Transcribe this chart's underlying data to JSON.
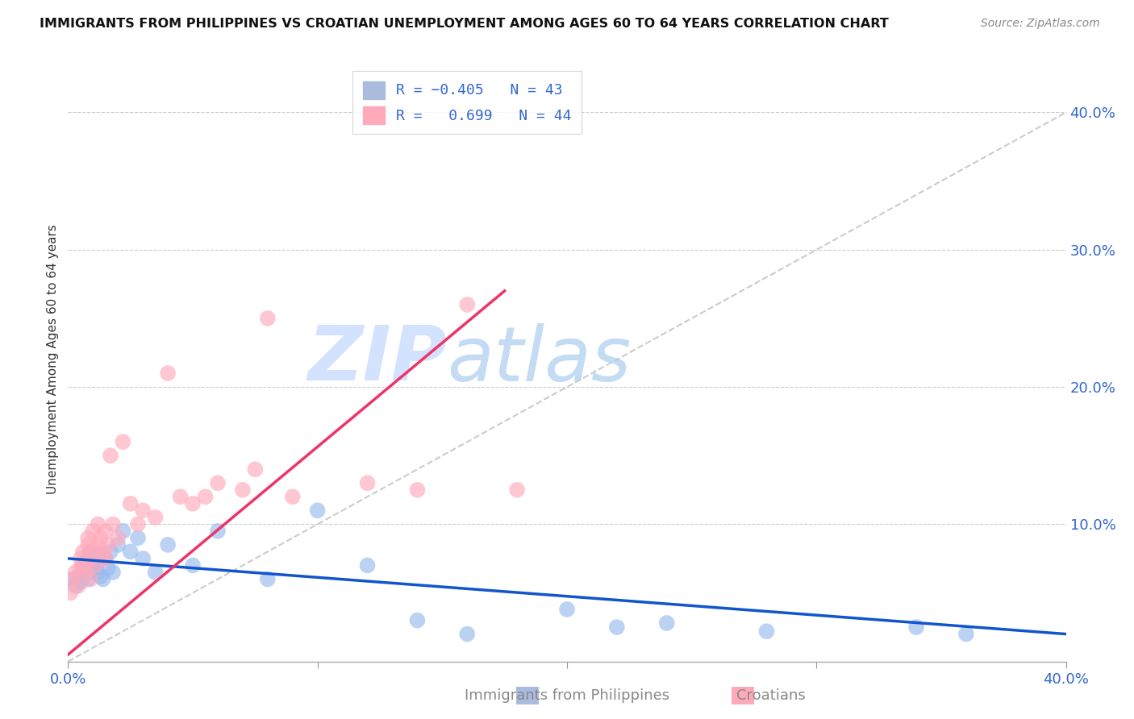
{
  "title": "IMMIGRANTS FROM PHILIPPINES VS CROATIAN UNEMPLOYMENT AMONG AGES 60 TO 64 YEARS CORRELATION CHART",
  "source": "Source: ZipAtlas.com",
  "ylabel": "Unemployment Among Ages 60 to 64 years",
  "blue_color": "#99BBEE",
  "pink_color": "#FFAABB",
  "blue_line_color": "#1155CC",
  "pink_line_color": "#EE3366",
  "diagonal_color": "#CCCCCC",
  "watermark_zip": "ZIP",
  "watermark_atlas": "atlas",
  "xlim": [
    0.0,
    0.4
  ],
  "ylim": [
    0.0,
    0.44
  ],
  "blue_scatter_x": [
    0.002,
    0.003,
    0.004,
    0.005,
    0.006,
    0.006,
    0.007,
    0.007,
    0.008,
    0.008,
    0.009,
    0.009,
    0.01,
    0.01,
    0.011,
    0.012,
    0.012,
    0.013,
    0.014,
    0.015,
    0.016,
    0.017,
    0.018,
    0.02,
    0.022,
    0.025,
    0.028,
    0.03,
    0.035,
    0.04,
    0.05,
    0.06,
    0.08,
    0.1,
    0.12,
    0.14,
    0.16,
    0.2,
    0.22,
    0.24,
    0.28,
    0.34,
    0.36
  ],
  "blue_scatter_y": [
    0.06,
    0.055,
    0.062,
    0.058,
    0.07,
    0.065,
    0.068,
    0.072,
    0.06,
    0.075,
    0.065,
    0.08,
    0.068,
    0.073,
    0.07,
    0.065,
    0.078,
    0.062,
    0.06,
    0.075,
    0.068,
    0.08,
    0.065,
    0.085,
    0.095,
    0.08,
    0.09,
    0.075,
    0.065,
    0.085,
    0.07,
    0.095,
    0.06,
    0.11,
    0.07,
    0.03,
    0.02,
    0.038,
    0.025,
    0.028,
    0.022,
    0.025,
    0.02
  ],
  "pink_scatter_x": [
    0.001,
    0.002,
    0.003,
    0.004,
    0.005,
    0.005,
    0.006,
    0.006,
    0.007,
    0.008,
    0.008,
    0.009,
    0.009,
    0.01,
    0.01,
    0.011,
    0.012,
    0.012,
    0.013,
    0.014,
    0.015,
    0.015,
    0.016,
    0.017,
    0.018,
    0.02,
    0.022,
    0.025,
    0.028,
    0.03,
    0.035,
    0.04,
    0.045,
    0.05,
    0.055,
    0.06,
    0.07,
    0.075,
    0.08,
    0.09,
    0.12,
    0.14,
    0.16,
    0.18
  ],
  "pink_scatter_y": [
    0.05,
    0.06,
    0.065,
    0.055,
    0.075,
    0.068,
    0.08,
    0.07,
    0.065,
    0.085,
    0.09,
    0.06,
    0.075,
    0.08,
    0.095,
    0.07,
    0.085,
    0.1,
    0.09,
    0.08,
    0.075,
    0.095,
    0.085,
    0.15,
    0.1,
    0.09,
    0.16,
    0.115,
    0.1,
    0.11,
    0.105,
    0.21,
    0.12,
    0.115,
    0.12,
    0.13,
    0.125,
    0.14,
    0.25,
    0.12,
    0.13,
    0.125,
    0.26,
    0.125
  ]
}
